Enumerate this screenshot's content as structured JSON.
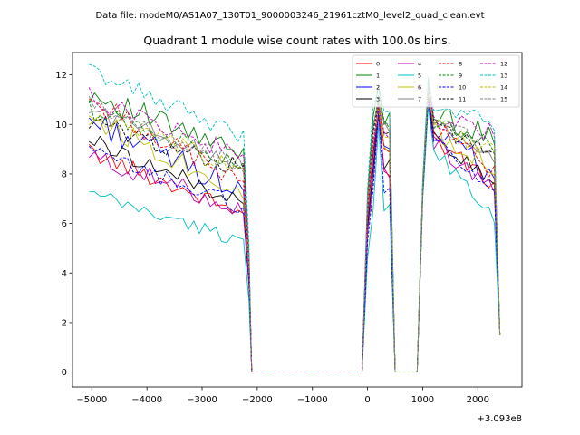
{
  "figure": {
    "suptitle": "Data file: modeM0/AS1A07_130T01_9000003246_21961cztM0_level2_quad_clean.evt"
  },
  "chart_data": {
    "type": "line",
    "title": "Quadrant 1 module wise count rates with 100.0s bins.",
    "xlabel": "",
    "ylabel": "",
    "x_offset_label": "+3.093e8",
    "xlim": [
      -5350,
      2800
    ],
    "ylim": [
      -0.6,
      12.9
    ],
    "xticks": [
      -5000,
      -4000,
      -3000,
      -2000,
      -1000,
      0,
      1000,
      2000
    ],
    "xtick_labels": [
      "−5000",
      "−4000",
      "−3000",
      "−2000",
      "−1000",
      "0",
      "1000",
      "2000"
    ],
    "yticks": [
      0,
      2,
      4,
      6,
      8,
      10,
      12
    ],
    "ytick_labels": [
      "0",
      "2",
      "4",
      "6",
      "8",
      "10",
      "12"
    ],
    "legend_position": "top-right",
    "legend_columns": 4,
    "bin_size_s": 100,
    "segments": [
      {
        "start": -5050,
        "end": -2150,
        "shape": "decay"
      },
      {
        "start": -2100,
        "end": -50,
        "shape": "zero"
      },
      {
        "start": 0,
        "end": 450,
        "shape": "hump"
      },
      {
        "start": 500,
        "end": 900,
        "shape": "zero"
      },
      {
        "start": 1000,
        "end": 2400,
        "shape": "decay2"
      }
    ],
    "series": [
      {
        "name": "0",
        "color": "#ff0000",
        "dash": "solid",
        "start": 8.9,
        "end": 6.3,
        "hump": 8.2,
        "peak": 11.0,
        "end2": 7.3,
        "noise": 0.35
      },
      {
        "name": "1",
        "color": "#008000",
        "dash": "solid",
        "start": 11.3,
        "end": 8.6,
        "hump": 10.2,
        "peak": 11.8,
        "end2": 9.3,
        "noise": 0.5
      },
      {
        "name": "2",
        "color": "#0000ff",
        "dash": "solid",
        "start": 10.2,
        "end": 7.2,
        "hump": 9.0,
        "peak": 11.2,
        "end2": 7.8,
        "noise": 0.55
      },
      {
        "name": "3",
        "color": "#000000",
        "dash": "solid",
        "start": 9.4,
        "end": 6.7,
        "hump": 8.4,
        "peak": 11.1,
        "end2": 7.4,
        "noise": 0.35
      },
      {
        "name": "4",
        "color": "#bf00bf",
        "dash": "solid",
        "start": 8.7,
        "end": 6.5,
        "hump": 8.0,
        "peak": 10.9,
        "end2": 7.0,
        "noise": 0.4
      },
      {
        "name": "5",
        "color": "#00bfbf",
        "dash": "solid",
        "start": 7.2,
        "end": 5.2,
        "hump": 6.6,
        "peak": 10.7,
        "end2": 5.9,
        "noise": 0.3
      },
      {
        "name": "6",
        "color": "#bfbf00",
        "dash": "solid",
        "start": 10.3,
        "end": 7.2,
        "hump": 9.2,
        "peak": 11.3,
        "end2": 8.2,
        "noise": 0.5
      },
      {
        "name": "7",
        "color": "#808080",
        "dash": "solid",
        "start": 10.6,
        "end": 8.3,
        "hump": 9.8,
        "peak": 11.6,
        "end2": 8.6,
        "noise": 0.4
      },
      {
        "name": "8",
        "color": "#ff0000",
        "dash": "dashed",
        "start": 11.0,
        "end": 7.5,
        "hump": 9.1,
        "peak": 11.3,
        "end2": 8.0,
        "noise": 0.45
      },
      {
        "name": "9",
        "color": "#008000",
        "dash": "dashed",
        "start": 10.6,
        "end": 8.4,
        "hump": 9.9,
        "peak": 11.5,
        "end2": 9.0,
        "noise": 0.4
      },
      {
        "name": "10",
        "color": "#0000ff",
        "dash": "dashed",
        "start": 8.9,
        "end": 6.6,
        "hump": 7.5,
        "peak": 11.0,
        "end2": 6.9,
        "noise": 0.35
      },
      {
        "name": "11",
        "color": "#000000",
        "dash": "dashed",
        "start": 10.1,
        "end": 8.1,
        "hump": 9.5,
        "peak": 11.4,
        "end2": 8.7,
        "noise": 0.4
      },
      {
        "name": "12",
        "color": "#bf00bf",
        "dash": "dashed",
        "start": 11.1,
        "end": 8.6,
        "hump": 9.6,
        "peak": 11.5,
        "end2": 9.6,
        "noise": 0.4
      },
      {
        "name": "13",
        "color": "#00bfbf",
        "dash": "dashed",
        "start": 12.2,
        "end": 9.4,
        "hump": 10.6,
        "peak": 11.9,
        "end2": 10.0,
        "noise": 0.35
      },
      {
        "name": "14",
        "color": "#bfbf00",
        "dash": "dashed",
        "start": 10.4,
        "end": 8.0,
        "hump": 9.6,
        "peak": 11.4,
        "end2": 8.8,
        "noise": 0.45
      },
      {
        "name": "15",
        "color": "#808080",
        "dash": "dashed",
        "start": 10.8,
        "end": 8.2,
        "hump": 9.8,
        "peak": 11.6,
        "end2": 8.7,
        "noise": 0.4
      }
    ]
  }
}
